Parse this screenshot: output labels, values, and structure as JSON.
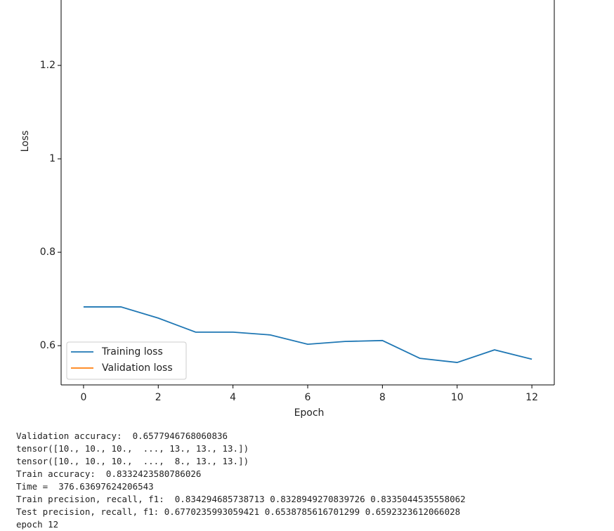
{
  "chart_data": {
    "type": "line",
    "x": [
      0,
      1,
      2,
      3,
      4,
      5,
      6,
      7,
      8,
      9,
      10,
      11,
      12
    ],
    "series": [
      {
        "name": "Training loss",
        "color": "#1f77b4",
        "values": [
          0.683,
          0.683,
          0.659,
          0.629,
          0.629,
          0.623,
          0.603,
          0.609,
          0.611,
          0.573,
          0.564,
          0.591,
          0.571
        ]
      },
      {
        "name": "Validation loss",
        "color": "#ff7f0e",
        "values": [
          null,
          null,
          null,
          null,
          null,
          null,
          null,
          null,
          null,
          null,
          null,
          null,
          null
        ]
      }
    ],
    "xlabel": "Epoch",
    "ylabel": "Loss",
    "xlim": [
      -0.6,
      12.6
    ],
    "xticks": [
      0,
      2,
      4,
      6,
      8,
      10,
      12
    ],
    "ylim": [
      0.516,
      1.34
    ],
    "yticks": [
      0.6,
      0.8,
      1.0,
      1.2
    ],
    "legend": "lower left"
  },
  "output": [
    "Validation accuracy:  0.6577946768060836",
    "tensor([10., 10., 10.,  ..., 13., 13., 13.])",
    "tensor([10., 10., 10.,  ...,  8., 13., 13.])",
    "Train accuracy:  0.8332423580786026",
    "Time =  376.63697624206543",
    "Train precision, recall, f1:  0.834294685738713 0.8328949270839726 0.8335044535558062",
    "Test precision, recall, f1: 0.6770235993059421 0.6538785616701299 0.6592323612066028",
    "epoch 12"
  ]
}
